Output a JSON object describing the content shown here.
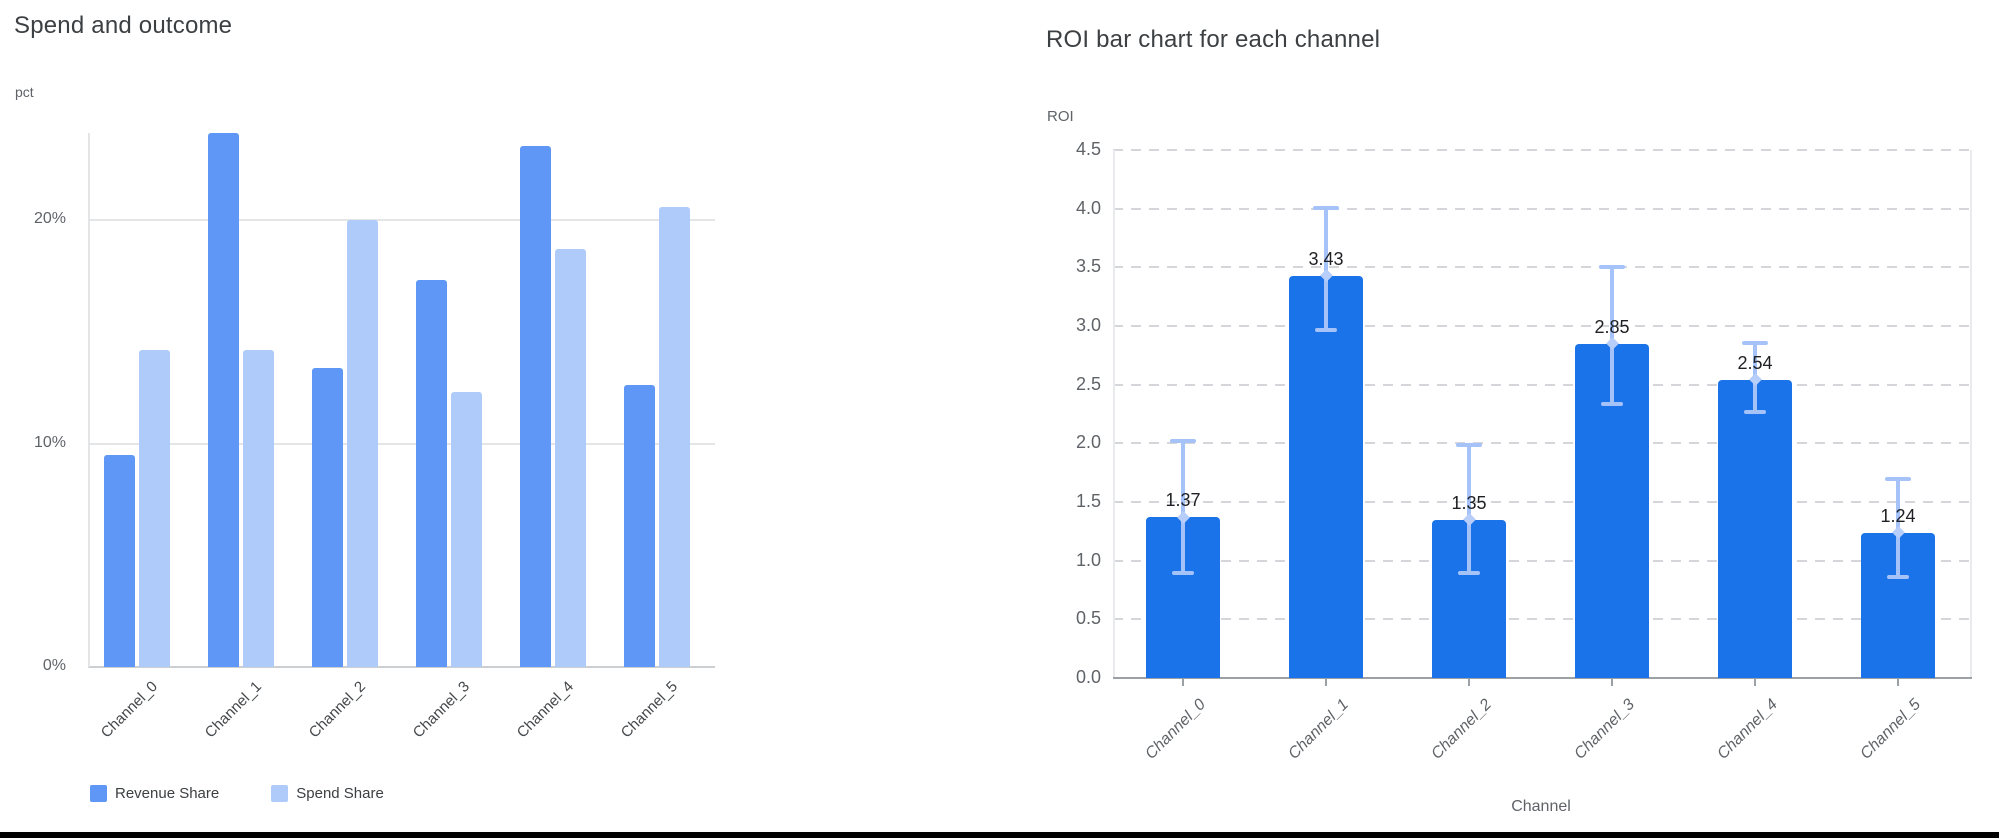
{
  "page": {
    "background": "#ffffff",
    "bottom_border_color": "#000000"
  },
  "colors": {
    "revenue_blue": "#5e97f6",
    "spend_light_blue": "#aecbfa",
    "roi_bar_blue": "#1a73e8",
    "error_bar_blue": "#a5c2f9",
    "title_gray": "#3c4043",
    "axis_gray": "#5f6368"
  },
  "chart_data": [
    {
      "type": "bar",
      "title": "Spend and outcome",
      "y_axis_title": "pct",
      "x_axis_title": "",
      "categories": [
        "Channel_0",
        "Channel_1",
        "Channel_2",
        "Channel_3",
        "Channel_4",
        "Channel_5"
      ],
      "series": [
        {
          "name": "Revenue Share",
          "color": "#5e97f6",
          "values": [
            9.5,
            23.9,
            13.4,
            17.3,
            23.3,
            12.6
          ]
        },
        {
          "name": "Spend Share",
          "color": "#aecbfa",
          "values": [
            14.2,
            14.2,
            20.0,
            12.3,
            18.7,
            20.6
          ]
        }
      ],
      "value_unit": "percent",
      "ylim": [
        0,
        24
      ],
      "y_ticks": [
        0,
        10,
        20
      ],
      "y_tick_labels": [
        "0%",
        "10%",
        "20%"
      ],
      "grid": "solid-horizontal",
      "legend_position": "bottom"
    },
    {
      "type": "bar",
      "title": "ROI bar chart for each channel",
      "y_axis_title": "ROI",
      "x_axis_title": "Channel",
      "categories": [
        "Channel_0",
        "Channel_1",
        "Channel_2",
        "Channel_3",
        "Channel_4",
        "Channel_5"
      ],
      "values": [
        1.37,
        3.43,
        1.35,
        2.85,
        2.54,
        1.24
      ],
      "bar_labels": [
        "1.37",
        "3.43",
        "1.35",
        "2.85",
        "2.54",
        "1.24"
      ],
      "error_low": [
        0.88,
        2.95,
        0.88,
        2.32,
        2.25,
        0.84
      ],
      "error_high": [
        2.04,
        4.02,
        2.0,
        3.52,
        2.87,
        1.71
      ],
      "bar_color": "#1a73e8",
      "error_color": "#a5c2f9",
      "ylim": [
        0,
        4.5
      ],
      "y_ticks": [
        0.0,
        0.5,
        1.0,
        1.5,
        2.0,
        2.5,
        3.0,
        3.5,
        4.0,
        4.5
      ],
      "y_tick_labels": [
        "0.0",
        "0.5",
        "1.0",
        "1.5",
        "2.0",
        "2.5",
        "3.0",
        "3.5",
        "4.0",
        "4.5"
      ],
      "grid": "dashed-horizontal",
      "legend_position": "none"
    }
  ]
}
